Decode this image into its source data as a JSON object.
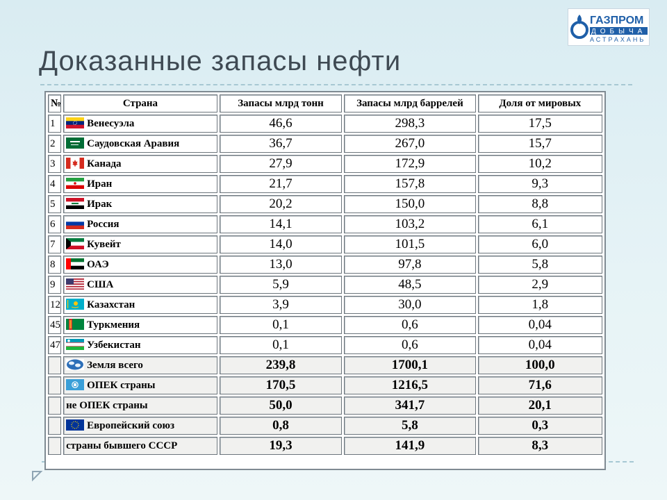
{
  "logo": {
    "brand": "ГАЗПРОМ",
    "line2": "ДОБЫЧА",
    "line3": "АСТРАХАНЬ",
    "color": "#1f5fa8"
  },
  "title": "Доказанные запасы нефти",
  "table": {
    "headers": [
      "№",
      "Страна",
      "Запасы млрд тонн",
      "Запасы млрд баррелей",
      "Доля от мировых"
    ],
    "rows": [
      {
        "idx": "1",
        "country": "Венесуэла",
        "flag": "venezuela-flag-icon",
        "tonnes": "46,6",
        "barrels": "298,3",
        "share": "17,5"
      },
      {
        "idx": "2",
        "country": "Саудовская Аравия",
        "flag": "saudi-arabia-flag-icon",
        "tonnes": "36,7",
        "barrels": "267,0",
        "share": "15,7"
      },
      {
        "idx": "3",
        "country": "Канада",
        "flag": "canada-flag-icon",
        "tonnes": "27,9",
        "barrels": "172,9",
        "share": "10,2"
      },
      {
        "idx": "4",
        "country": "Иран",
        "flag": "iran-flag-icon",
        "tonnes": "21,7",
        "barrels": "157,8",
        "share": "9,3"
      },
      {
        "idx": "5",
        "country": "Ирак",
        "flag": "iraq-flag-icon",
        "tonnes": "20,2",
        "barrels": "150,0",
        "share": "8,8"
      },
      {
        "idx": "6",
        "country": "Россия",
        "flag": "russia-flag-icon",
        "tonnes": "14,1",
        "barrels": "103,2",
        "share": "6,1"
      },
      {
        "idx": "7",
        "country": "Кувейт",
        "flag": "kuwait-flag-icon",
        "tonnes": "14,0",
        "barrels": "101,5",
        "share": "6,0"
      },
      {
        "idx": "8",
        "country": "ОАЭ",
        "flag": "uae-flag-icon",
        "tonnes": "13,0",
        "barrels": "97,8",
        "share": "5,8"
      },
      {
        "idx": "9",
        "country": "США",
        "flag": "usa-flag-icon",
        "tonnes": "5,9",
        "barrels": "48,5",
        "share": "2,9"
      },
      {
        "idx": "12",
        "country": "Казахстан",
        "flag": "kazakhstan-flag-icon",
        "tonnes": "3,9",
        "barrels": "30,0",
        "share": "1,8"
      },
      {
        "idx": "45",
        "country": "Туркмения",
        "flag": "turkmenistan-flag-icon",
        "tonnes": "0,1",
        "barrels": "0,6",
        "share": "0,04"
      },
      {
        "idx": "47",
        "country": "Узбекистан",
        "flag": "uzbekistan-flag-icon",
        "tonnes": "0,1",
        "barrels": "0,6",
        "share": "0,04"
      },
      {
        "idx": "",
        "country": "Земля всего",
        "flag": "globe-icon",
        "tonnes": "239,8",
        "barrels": "1700,1",
        "share": "100,0"
      },
      {
        "idx": "",
        "country": "ОПЕК страны",
        "flag": "opec-flag-icon",
        "tonnes": "170,5",
        "barrels": "1216,5",
        "share": "71,6"
      },
      {
        "idx": "",
        "country": "не ОПЕК страны",
        "flag": "",
        "tonnes": "50,0",
        "barrels": "341,7",
        "share": "20,1"
      },
      {
        "idx": "",
        "country": "Европейский союз",
        "flag": "eu-flag-icon",
        "tonnes": "0,8",
        "barrels": "5,8",
        "share": "0,3"
      },
      {
        "idx": "",
        "country": "страны бывшего СССР",
        "flag": "",
        "tonnes": "19,3",
        "barrels": "141,9",
        "share": "8,3"
      }
    ]
  }
}
